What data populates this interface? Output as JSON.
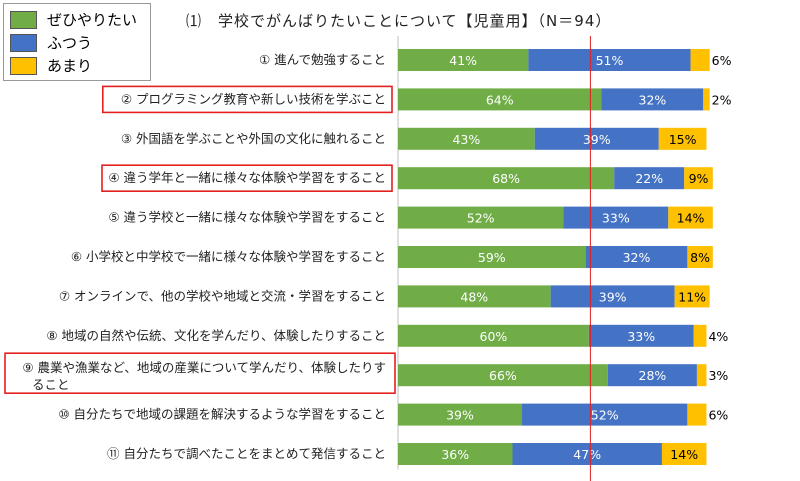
{
  "chart_data": {
    "type": "stacked-bar-horizontal",
    "title": "⑴　学校でがんばりたいことについて【児童用】（N＝94）",
    "xlim": [
      0,
      100
    ],
    "legend": [
      {
        "label": "ぜひやりたい",
        "color": "#70ad47"
      },
      {
        "label": "ふつう",
        "color": "#4472c4"
      },
      {
        "label": "あまり",
        "color": "#ffc000"
      }
    ],
    "categories": [
      {
        "label": "① 進んで勉強すること",
        "values": [
          41,
          51,
          6
        ],
        "highlighted": false
      },
      {
        "label": "② プログラミング教育や新しい技術を学ぶこと",
        "values": [
          64,
          32,
          2
        ],
        "highlighted": true
      },
      {
        "label": "③ 外国語を学ぶことや外国の文化に触れること",
        "values": [
          43,
          39,
          15
        ],
        "highlighted": false
      },
      {
        "label": "④ 違う学年と一緒に様々な体験や学習をすること",
        "values": [
          68,
          22,
          9
        ],
        "highlighted": true
      },
      {
        "label": "⑤ 違う学校と一緒に様々な体験や学習をすること",
        "values": [
          52,
          33,
          14
        ],
        "highlighted": false
      },
      {
        "label": "⑥ 小学校と中学校で一緒に様々な体験や学習をすること",
        "values": [
          59,
          32,
          8
        ],
        "highlighted": false
      },
      {
        "label": "⑦ オンラインで、他の学校や地域と交流・学習をすること",
        "values": [
          48,
          39,
          11
        ],
        "highlighted": false
      },
      {
        "label": "⑧ 地域の自然や伝統、文化を学んだり、体験したりすること",
        "values": [
          60,
          33,
          4
        ],
        "highlighted": false
      },
      {
        "label": "⑨ 農業や漁業など、地域の産業について学んだり、体験したりすること",
        "values": [
          66,
          28,
          3
        ],
        "highlighted": true
      },
      {
        "label": "⑩ 自分たちで地域の課題を解決するような学習をすること",
        "values": [
          39,
          52,
          6
        ],
        "highlighted": false
      },
      {
        "label": "⑪ 自分たちで調べたことをまとめて発信すること",
        "values": [
          36,
          47,
          14
        ],
        "highlighted": false
      }
    ],
    "reference_line_percent": 60.5,
    "value_suffix": "%"
  }
}
